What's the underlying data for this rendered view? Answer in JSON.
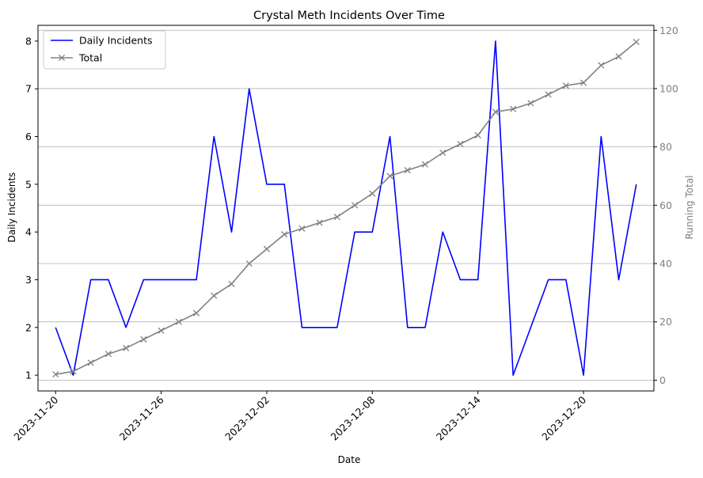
{
  "chart_data": {
    "type": "line",
    "title": "Crystal Meth Incidents Over Time",
    "xlabel": "Date",
    "ylabel": "Daily Incidents",
    "y2label": "Running Total",
    "x": [
      "2023-11-20",
      "2023-11-21",
      "2023-11-22",
      "2023-11-23",
      "2023-11-24",
      "2023-11-25",
      "2023-11-26",
      "2023-11-27",
      "2023-11-28",
      "2023-11-29",
      "2023-11-30",
      "2023-12-01",
      "2023-12-02",
      "2023-12-03",
      "2023-12-04",
      "2023-12-05",
      "2023-12-06",
      "2023-12-07",
      "2023-12-08",
      "2023-12-09",
      "2023-12-10",
      "2023-12-11",
      "2023-12-12",
      "2023-12-13",
      "2023-12-14",
      "2023-12-15",
      "2023-12-16",
      "2023-12-17",
      "2023-12-18",
      "2023-12-19",
      "2023-12-20",
      "2023-12-21",
      "2023-12-22",
      "2023-12-23"
    ],
    "xticks": [
      "2023-11-20",
      "2023-11-26",
      "2023-12-02",
      "2023-12-08",
      "2023-12-14",
      "2023-12-20"
    ],
    "xlim": [
      "2023-11-19",
      "2023-12-24"
    ],
    "series": [
      {
        "name": "Daily Incidents",
        "axis": "left",
        "color": "#0000ff",
        "marker": "none",
        "values": [
          2,
          1,
          3,
          3,
          2,
          3,
          3,
          3,
          3,
          6,
          4,
          7,
          5,
          5,
          2,
          2,
          2,
          4,
          4,
          6,
          2,
          2,
          4,
          3,
          3,
          8,
          1,
          2,
          3,
          3,
          1,
          6,
          3,
          5
        ]
      },
      {
        "name": "Total",
        "axis": "right",
        "color": "#808080",
        "marker": "x",
        "values": [
          2,
          3,
          6,
          9,
          11,
          14,
          17,
          20,
          23,
          29,
          33,
          40,
          45,
          50,
          52,
          54,
          56,
          60,
          64,
          70,
          72,
          74,
          78,
          81,
          84,
          92,
          93,
          95,
          98,
          101,
          102,
          108,
          111,
          116
        ]
      }
    ],
    "ylim": [
      0.67,
      8.33
    ],
    "yticks": [
      1,
      2,
      3,
      4,
      5,
      6,
      7,
      8
    ],
    "y2lim": [
      -3.7,
      121.7
    ],
    "y2ticks": [
      0,
      20,
      40,
      60,
      80,
      100,
      120
    ],
    "grid": "horizontal lines at right-axis ticks",
    "legend": "top-left"
  }
}
